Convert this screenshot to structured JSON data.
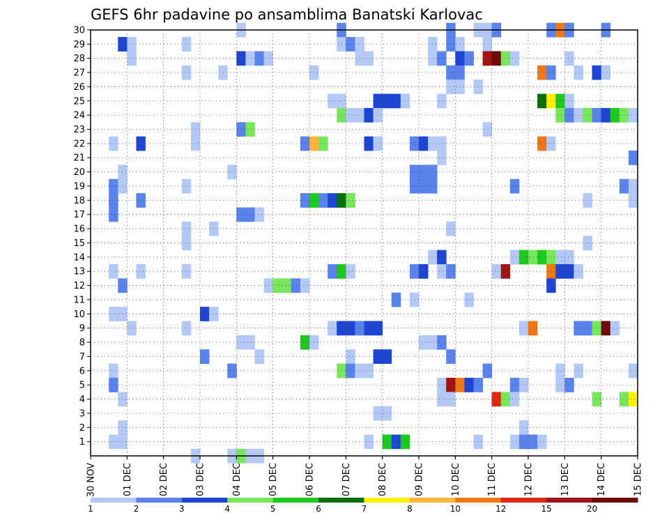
{
  "chart_data": {
    "type": "heatmap",
    "title": "GEFS 6hr padavine po ansamblima Banatski Karlovac",
    "xlabel": "",
    "ylabel": "",
    "y_categories": [
      "1",
      "2",
      "3",
      "4",
      "5",
      "6",
      "7",
      "8",
      "9",
      "10",
      "11",
      "12",
      "13",
      "14",
      "15",
      "16",
      "17",
      "18",
      "19",
      "20",
      "21",
      "22",
      "23",
      "24",
      "25",
      "26",
      "27",
      "28",
      "29",
      "30"
    ],
    "x_tick_labels": [
      "30 NOV",
      "01 DEC",
      "02 DEC",
      "03 DEC",
      "04 DEC",
      "05 DEC",
      "06 DEC",
      "07 DEC",
      "08 DEC",
      "09 DEC",
      "10 DEC",
      "11 DEC",
      "12 DEC",
      "13 DEC",
      "14 DEC",
      "15 DEC"
    ],
    "time_steps_per_day": 4,
    "n_time_steps": 60,
    "colorbar": {
      "tick_labels": [
        "1",
        "2",
        "3",
        "4",
        "5",
        "6",
        "7",
        "8",
        "10",
        "12",
        "15",
        "20"
      ],
      "levels": [
        1,
        2,
        3,
        4,
        5,
        6,
        7,
        8,
        10,
        12,
        15,
        20
      ],
      "colors": [
        "#b4c8f8",
        "#5a82eb",
        "#1e46d2",
        "#78e65a",
        "#1ec81e",
        "#0a6e0a",
        "#fff000",
        "#ffb43c",
        "#f07814",
        "#dc2814",
        "#a01414",
        "#6e0a0a"
      ]
    },
    "grid": true,
    "cells": [
      [
        30,
        17,
        1
      ],
      [
        30,
        28,
        2
      ],
      [
        30,
        40,
        2
      ],
      [
        30,
        43,
        1
      ],
      [
        30,
        44,
        1
      ],
      [
        30,
        45,
        2
      ],
      [
        30,
        51,
        2
      ],
      [
        30,
        52,
        9
      ],
      [
        30,
        53,
        2
      ],
      [
        30,
        57,
        2
      ],
      [
        29,
        4,
        3
      ],
      [
        29,
        5,
        1
      ],
      [
        29,
        11,
        1
      ],
      [
        29,
        28,
        1
      ],
      [
        29,
        29,
        2
      ],
      [
        29,
        30,
        1
      ],
      [
        29,
        38,
        1
      ],
      [
        29,
        40,
        2
      ],
      [
        29,
        41,
        1
      ],
      [
        29,
        44,
        1
      ],
      [
        28,
        5,
        1
      ],
      [
        28,
        17,
        3
      ],
      [
        28,
        18,
        1
      ],
      [
        28,
        19,
        2
      ],
      [
        28,
        20,
        1
      ],
      [
        28,
        30,
        1
      ],
      [
        28,
        31,
        1
      ],
      [
        28,
        38,
        1
      ],
      [
        28,
        39,
        2
      ],
      [
        28,
        41,
        3
      ],
      [
        28,
        42,
        2
      ],
      [
        28,
        44,
        11
      ],
      [
        28,
        45,
        12
      ],
      [
        28,
        46,
        4
      ],
      [
        28,
        47,
        1
      ],
      [
        28,
        53,
        1
      ],
      [
        27,
        11,
        1
      ],
      [
        27,
        15,
        1
      ],
      [
        27,
        25,
        1
      ],
      [
        27,
        40,
        2
      ],
      [
        27,
        41,
        2
      ],
      [
        27,
        50,
        9
      ],
      [
        27,
        51,
        2
      ],
      [
        27,
        54,
        1
      ],
      [
        27,
        56,
        3
      ],
      [
        27,
        57,
        1
      ],
      [
        26,
        40,
        1
      ],
      [
        26,
        41,
        1
      ],
      [
        26,
        43,
        1
      ],
      [
        25,
        27,
        1
      ],
      [
        25,
        28,
        1
      ],
      [
        25,
        32,
        3
      ],
      [
        25,
        33,
        3
      ],
      [
        25,
        34,
        3
      ],
      [
        25,
        35,
        1
      ],
      [
        25,
        39,
        1
      ],
      [
        25,
        50,
        6
      ],
      [
        25,
        51,
        7
      ],
      [
        25,
        52,
        5
      ],
      [
        25,
        53,
        1
      ],
      [
        24,
        28,
        4
      ],
      [
        24,
        29,
        1
      ],
      [
        24,
        30,
        1
      ],
      [
        24,
        31,
        3
      ],
      [
        24,
        32,
        1
      ],
      [
        24,
        52,
        4
      ],
      [
        24,
        53,
        2
      ],
      [
        24,
        54,
        1
      ],
      [
        24,
        55,
        4
      ],
      [
        24,
        56,
        2
      ],
      [
        24,
        57,
        3
      ],
      [
        24,
        58,
        5
      ],
      [
        24,
        59,
        4
      ],
      [
        24,
        60,
        1
      ],
      [
        23,
        12,
        1
      ],
      [
        23,
        17,
        2
      ],
      [
        23,
        18,
        4
      ],
      [
        23,
        44,
        1
      ],
      [
        22,
        3,
        1
      ],
      [
        22,
        6,
        3
      ],
      [
        22,
        12,
        1
      ],
      [
        22,
        24,
        2
      ],
      [
        22,
        25,
        8
      ],
      [
        22,
        26,
        4
      ],
      [
        22,
        31,
        3
      ],
      [
        22,
        32,
        1
      ],
      [
        22,
        36,
        2
      ],
      [
        22,
        37,
        3
      ],
      [
        22,
        38,
        1
      ],
      [
        22,
        39,
        1
      ],
      [
        22,
        50,
        9
      ],
      [
        22,
        51,
        1
      ],
      [
        21,
        39,
        1
      ],
      [
        21,
        60,
        2
      ],
      [
        20,
        4,
        1
      ],
      [
        20,
        16,
        1
      ],
      [
        20,
        36,
        2
      ],
      [
        20,
        37,
        2
      ],
      [
        20,
        38,
        2
      ],
      [
        19,
        3,
        2
      ],
      [
        19,
        4,
        1
      ],
      [
        19,
        11,
        1
      ],
      [
        19,
        36,
        2
      ],
      [
        19,
        37,
        2
      ],
      [
        19,
        38,
        2
      ],
      [
        19,
        47,
        2
      ],
      [
        19,
        59,
        2
      ],
      [
        19,
        60,
        1
      ],
      [
        18,
        3,
        2
      ],
      [
        18,
        6,
        2
      ],
      [
        18,
        24,
        2
      ],
      [
        18,
        25,
        5
      ],
      [
        18,
        26,
        2
      ],
      [
        18,
        27,
        3
      ],
      [
        18,
        28,
        6
      ],
      [
        18,
        29,
        4
      ],
      [
        18,
        55,
        1
      ],
      [
        18,
        60,
        1
      ],
      [
        17,
        3,
        2
      ],
      [
        17,
        17,
        2
      ],
      [
        17,
        18,
        2
      ],
      [
        17,
        19,
        1
      ],
      [
        16,
        11,
        1
      ],
      [
        16,
        14,
        1
      ],
      [
        16,
        40,
        1
      ],
      [
        15,
        11,
        1
      ],
      [
        15,
        55,
        1
      ],
      [
        14,
        38,
        1
      ],
      [
        14,
        39,
        3
      ],
      [
        14,
        47,
        1
      ],
      [
        14,
        48,
        5
      ],
      [
        14,
        49,
        4
      ],
      [
        14,
        50,
        5
      ],
      [
        14,
        51,
        4
      ],
      [
        14,
        52,
        1
      ],
      [
        14,
        53,
        1
      ],
      [
        13,
        3,
        1
      ],
      [
        13,
        6,
        1
      ],
      [
        13,
        11,
        1
      ],
      [
        13,
        27,
        2
      ],
      [
        13,
        28,
        5
      ],
      [
        13,
        29,
        1
      ],
      [
        13,
        36,
        2
      ],
      [
        13,
        37,
        3
      ],
      [
        13,
        39,
        1
      ],
      [
        13,
        40,
        2
      ],
      [
        13,
        45,
        1
      ],
      [
        13,
        46,
        11
      ],
      [
        13,
        51,
        9
      ],
      [
        13,
        52,
        3
      ],
      [
        13,
        53,
        3
      ],
      [
        13,
        54,
        1
      ],
      [
        12,
        4,
        2
      ],
      [
        12,
        20,
        1
      ],
      [
        12,
        21,
        4
      ],
      [
        12,
        22,
        4
      ],
      [
        12,
        23,
        2
      ],
      [
        12,
        24,
        1
      ],
      [
        12,
        51,
        3
      ],
      [
        11,
        34,
        2
      ],
      [
        11,
        36,
        1
      ],
      [
        11,
        42,
        1
      ],
      [
        10,
        3,
        1
      ],
      [
        10,
        4,
        1
      ],
      [
        10,
        13,
        3
      ],
      [
        10,
        14,
        1
      ],
      [
        9,
        5,
        1
      ],
      [
        9,
        11,
        1
      ],
      [
        9,
        27,
        1
      ],
      [
        9,
        28,
        3
      ],
      [
        9,
        29,
        3
      ],
      [
        9,
        30,
        2
      ],
      [
        9,
        31,
        3
      ],
      [
        9,
        32,
        3
      ],
      [
        9,
        48,
        1
      ],
      [
        9,
        49,
        9
      ],
      [
        9,
        54,
        2
      ],
      [
        9,
        55,
        2
      ],
      [
        9,
        56,
        4
      ],
      [
        9,
        57,
        12
      ],
      [
        9,
        58,
        1
      ],
      [
        8,
        17,
        1
      ],
      [
        8,
        18,
        1
      ],
      [
        8,
        24,
        5
      ],
      [
        8,
        25,
        1
      ],
      [
        8,
        37,
        1
      ],
      [
        8,
        38,
        1
      ],
      [
        8,
        39,
        2
      ],
      [
        7,
        13,
        2
      ],
      [
        7,
        19,
        1
      ],
      [
        7,
        29,
        1
      ],
      [
        7,
        32,
        3
      ],
      [
        7,
        33,
        3
      ],
      [
        7,
        40,
        2
      ],
      [
        6,
        3,
        1
      ],
      [
        6,
        16,
        2
      ],
      [
        6,
        28,
        4
      ],
      [
        6,
        29,
        2
      ],
      [
        6,
        30,
        1
      ],
      [
        6,
        31,
        1
      ],
      [
        6,
        44,
        2
      ],
      [
        6,
        52,
        1
      ],
      [
        6,
        54,
        1
      ],
      [
        6,
        60,
        1
      ],
      [
        5,
        3,
        2
      ],
      [
        5,
        39,
        1
      ],
      [
        5,
        40,
        11
      ],
      [
        5,
        41,
        9
      ],
      [
        5,
        42,
        3
      ],
      [
        5,
        43,
        2
      ],
      [
        5,
        47,
        2
      ],
      [
        5,
        48,
        1
      ],
      [
        5,
        52,
        1
      ],
      [
        5,
        53,
        2
      ],
      [
        4,
        4,
        1
      ],
      [
        4,
        39,
        1
      ],
      [
        4,
        40,
        1
      ],
      [
        4,
        45,
        10
      ],
      [
        4,
        46,
        4
      ],
      [
        4,
        47,
        1
      ],
      [
        4,
        56,
        4
      ],
      [
        4,
        59,
        4
      ],
      [
        4,
        60,
        7
      ],
      [
        3,
        32,
        1
      ],
      [
        3,
        33,
        1
      ],
      [
        2,
        4,
        1
      ],
      [
        2,
        48,
        1
      ],
      [
        1,
        3,
        1
      ],
      [
        1,
        4,
        1
      ],
      [
        1,
        31,
        1
      ],
      [
        1,
        33,
        5
      ],
      [
        1,
        34,
        3
      ],
      [
        1,
        35,
        5
      ],
      [
        1,
        43,
        1
      ],
      [
        1,
        47,
        1
      ],
      [
        1,
        48,
        2
      ],
      [
        1,
        49,
        2
      ],
      [
        1,
        50,
        1
      ],
      [
        0,
        12,
        1
      ],
      [
        0,
        16,
        1
      ],
      [
        0,
        17,
        4
      ],
      [
        0,
        18,
        1
      ],
      [
        0,
        19,
        1
      ]
    ]
  }
}
